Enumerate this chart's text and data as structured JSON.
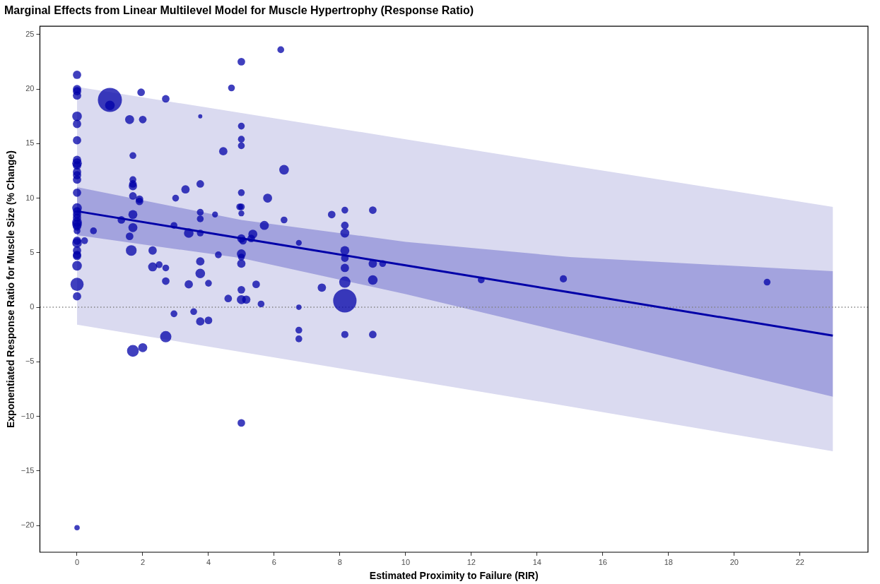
{
  "chart_data": {
    "type": "bubble",
    "title": "Marginal Effects from Linear Multilevel Model for Muscle Hypertrophy (Response Ratio)",
    "xlabel": "Estimated Proximity to Failure (RIR)",
    "ylabel": "Exponentiated Response Ratio for Muscle Size (% Change)",
    "xlim": [
      -1.13,
      24.07
    ],
    "ylim": [
      -22.45,
      25.75
    ],
    "xticks": [
      0,
      2,
      4,
      6,
      8,
      10,
      12,
      14,
      16,
      18,
      20,
      22
    ],
    "yticks": [
      {
        "value": -20,
        "label": "−20"
      },
      {
        "value": -15,
        "label": "−15"
      },
      {
        "value": -10,
        "label": "−10"
      },
      {
        "value": -5,
        "label": "−5"
      },
      0,
      5,
      10,
      15,
      20,
      25
    ],
    "grid": false,
    "legend": false,
    "ref_lines": [
      {
        "axis": "y",
        "value": 0,
        "color": "#808080",
        "line_style": "dotted"
      }
    ],
    "series": [
      {
        "type": "line",
        "color": "#dadaf0",
        "x": [
          0,
          5,
          10,
          15,
          23
        ],
        "values": [
          null,
          null,
          null,
          null,
          null
        ],
        "lower": [
          -1.6,
          -4.1,
          -6.6,
          -9.1,
          -13.2
        ],
        "upper": [
          20.2,
          17.8,
          15.4,
          13.0,
          9.2
        ]
      },
      {
        "type": "line",
        "color": "#0000a8",
        "marker": "none",
        "x": [
          0,
          5,
          10,
          15,
          23
        ],
        "values": [
          8.8,
          6.32,
          3.84,
          1.36,
          -2.6
        ],
        "lower": [
          6.6,
          4.5,
          1.2,
          -2.4,
          -8.2
        ],
        "upper": [
          11.0,
          8.0,
          6.0,
          4.6,
          3.3
        ]
      },
      {
        "color": "#0000a8",
        "marker": "circle",
        "x": [
          0,
          0,
          0,
          0,
          0,
          0,
          0,
          0,
          0,
          0,
          0,
          0,
          0,
          0,
          0,
          0,
          0,
          0,
          0,
          0,
          0,
          0,
          0,
          0,
          0,
          0,
          0,
          0,
          0,
          0,
          0,
          0.23,
          0.5,
          1.0,
          1.0,
          1.35,
          1.6,
          1.6,
          1.7,
          1.7,
          1.7,
          1.7,
          1.7,
          1.7,
          1.7,
          1.65,
          1.7,
          1.9,
          1.9,
          1.95,
          2.0,
          2.0,
          2.3,
          2.3,
          2.5,
          2.7,
          2.7,
          2.7,
          2.7,
          3.0,
          2.95,
          2.95,
          3.3,
          3.4,
          3.4,
          3.55,
          3.75,
          3.75,
          3.75,
          3.75,
          3.75,
          3.75,
          3.75,
          3.75,
          4.0,
          4.0,
          4.2,
          4.3,
          4.45,
          4.6,
          4.7,
          5.0,
          5.0,
          5.0,
          5.0,
          5.0,
          4.95,
          5.0,
          5.0,
          5.0,
          5.05,
          5.0,
          5.0,
          5.0,
          5.0,
          5.0,
          5.15,
          5.0,
          5.35,
          5.3,
          5.45,
          5.6,
          5.7,
          5.8,
          6.2,
          6.3,
          6.3,
          6.75,
          6.75,
          6.75,
          6.75,
          7.45,
          7.75,
          8.15,
          8.15,
          8.15,
          8.15,
          8.15,
          8.15,
          8.15,
          8.15,
          8.15,
          9.0,
          9.0,
          9.0,
          9.0,
          9.3,
          12.3,
          14.8,
          21.0
        ],
        "values": [
          21.3,
          20.0,
          19.8,
          19.4,
          17.5,
          16.8,
          15.3,
          13.5,
          13.2,
          13.0,
          12.4,
          12.1,
          11.7,
          10.5,
          9.1,
          8.8,
          8.5,
          8.2,
          7.8,
          7.6,
          7.4,
          7.0,
          6.1,
          5.9,
          5.2,
          4.8,
          4.7,
          3.8,
          2.1,
          1.0,
          -20.2,
          6.1,
          7.0,
          19.0,
          18.5,
          8.0,
          17.2,
          6.5,
          13.9,
          11.7,
          11.3,
          11.1,
          10.2,
          8.5,
          7.3,
          5.2,
          -4.0,
          9.9,
          9.7,
          19.7,
          17.2,
          -3.7,
          5.2,
          3.7,
          3.9,
          19.1,
          2.4,
          3.6,
          -2.7,
          10.0,
          7.5,
          -0.6,
          10.8,
          6.8,
          2.1,
          -0.4,
          17.5,
          11.3,
          8.7,
          8.1,
          6.8,
          4.2,
          3.1,
          -1.3,
          2.2,
          -1.2,
          8.5,
          4.8,
          14.3,
          0.8,
          20.1,
          22.5,
          16.6,
          15.4,
          14.8,
          10.5,
          9.2,
          9.2,
          8.6,
          6.3,
          6.1,
          4.9,
          4.6,
          4.0,
          1.6,
          0.7,
          0.7,
          -10.6,
          6.7,
          6.3,
          2.1,
          0.3,
          7.5,
          10.0,
          23.6,
          12.6,
          8.0,
          5.9,
          0.0,
          -2.1,
          -2.9,
          1.8,
          8.5,
          8.9,
          7.5,
          6.8,
          5.2,
          4.5,
          3.6,
          2.3,
          0.6,
          -2.5,
          8.9,
          4.0,
          2.5,
          -2.5,
          4.0,
          2.5,
          2.6,
          2.3
        ],
        "sizes": [
          0.12,
          0.12,
          0.12,
          0.12,
          0.16,
          0.12,
          0.12,
          0.12,
          0.16,
          0.12,
          0.12,
          0.12,
          0.12,
          0.12,
          0.16,
          0.12,
          0.12,
          0.12,
          0.16,
          0.16,
          0.12,
          0.08,
          0.12,
          0.16,
          0.12,
          0.12,
          0.12,
          0.16,
          0.3,
          0.12,
          0.05,
          0.08,
          0.08,
          1,
          0.16,
          0.1,
          0.14,
          0.1,
          0.08,
          0.08,
          0.1,
          0.12,
          0.1,
          0.14,
          0.14,
          0.2,
          0.24,
          0.1,
          0.1,
          0.1,
          0.1,
          0.14,
          0.12,
          0.14,
          0.08,
          0.1,
          0.1,
          0.08,
          0.22,
          0.08,
          0.08,
          0.08,
          0.12,
          0.16,
          0.12,
          0.08,
          0.03,
          0.1,
          0.08,
          0.08,
          0.08,
          0.12,
          0.16,
          0.12,
          0.08,
          0.1,
          0.06,
          0.08,
          0.12,
          0.1,
          0.08,
          0.1,
          0.08,
          0.08,
          0.08,
          0.08,
          0.08,
          0.08,
          0.06,
          0.12,
          0.1,
          0.14,
          0.08,
          0.12,
          0.1,
          0.14,
          0.12,
          0.1,
          0.14,
          0.1,
          0.1,
          0.08,
          0.14,
          0.14,
          0.08,
          0.16,
          0.08,
          0.06,
          0.05,
          0.08,
          0.08,
          0.12,
          0.1,
          0.08,
          0.1,
          0.14,
          0.14,
          0.1,
          0.12,
          0.22,
          0.95,
          0.09,
          0.1,
          0.12,
          0.16,
          0.1,
          0.08,
          0.08,
          0.09,
          0.08
        ]
      }
    ]
  }
}
